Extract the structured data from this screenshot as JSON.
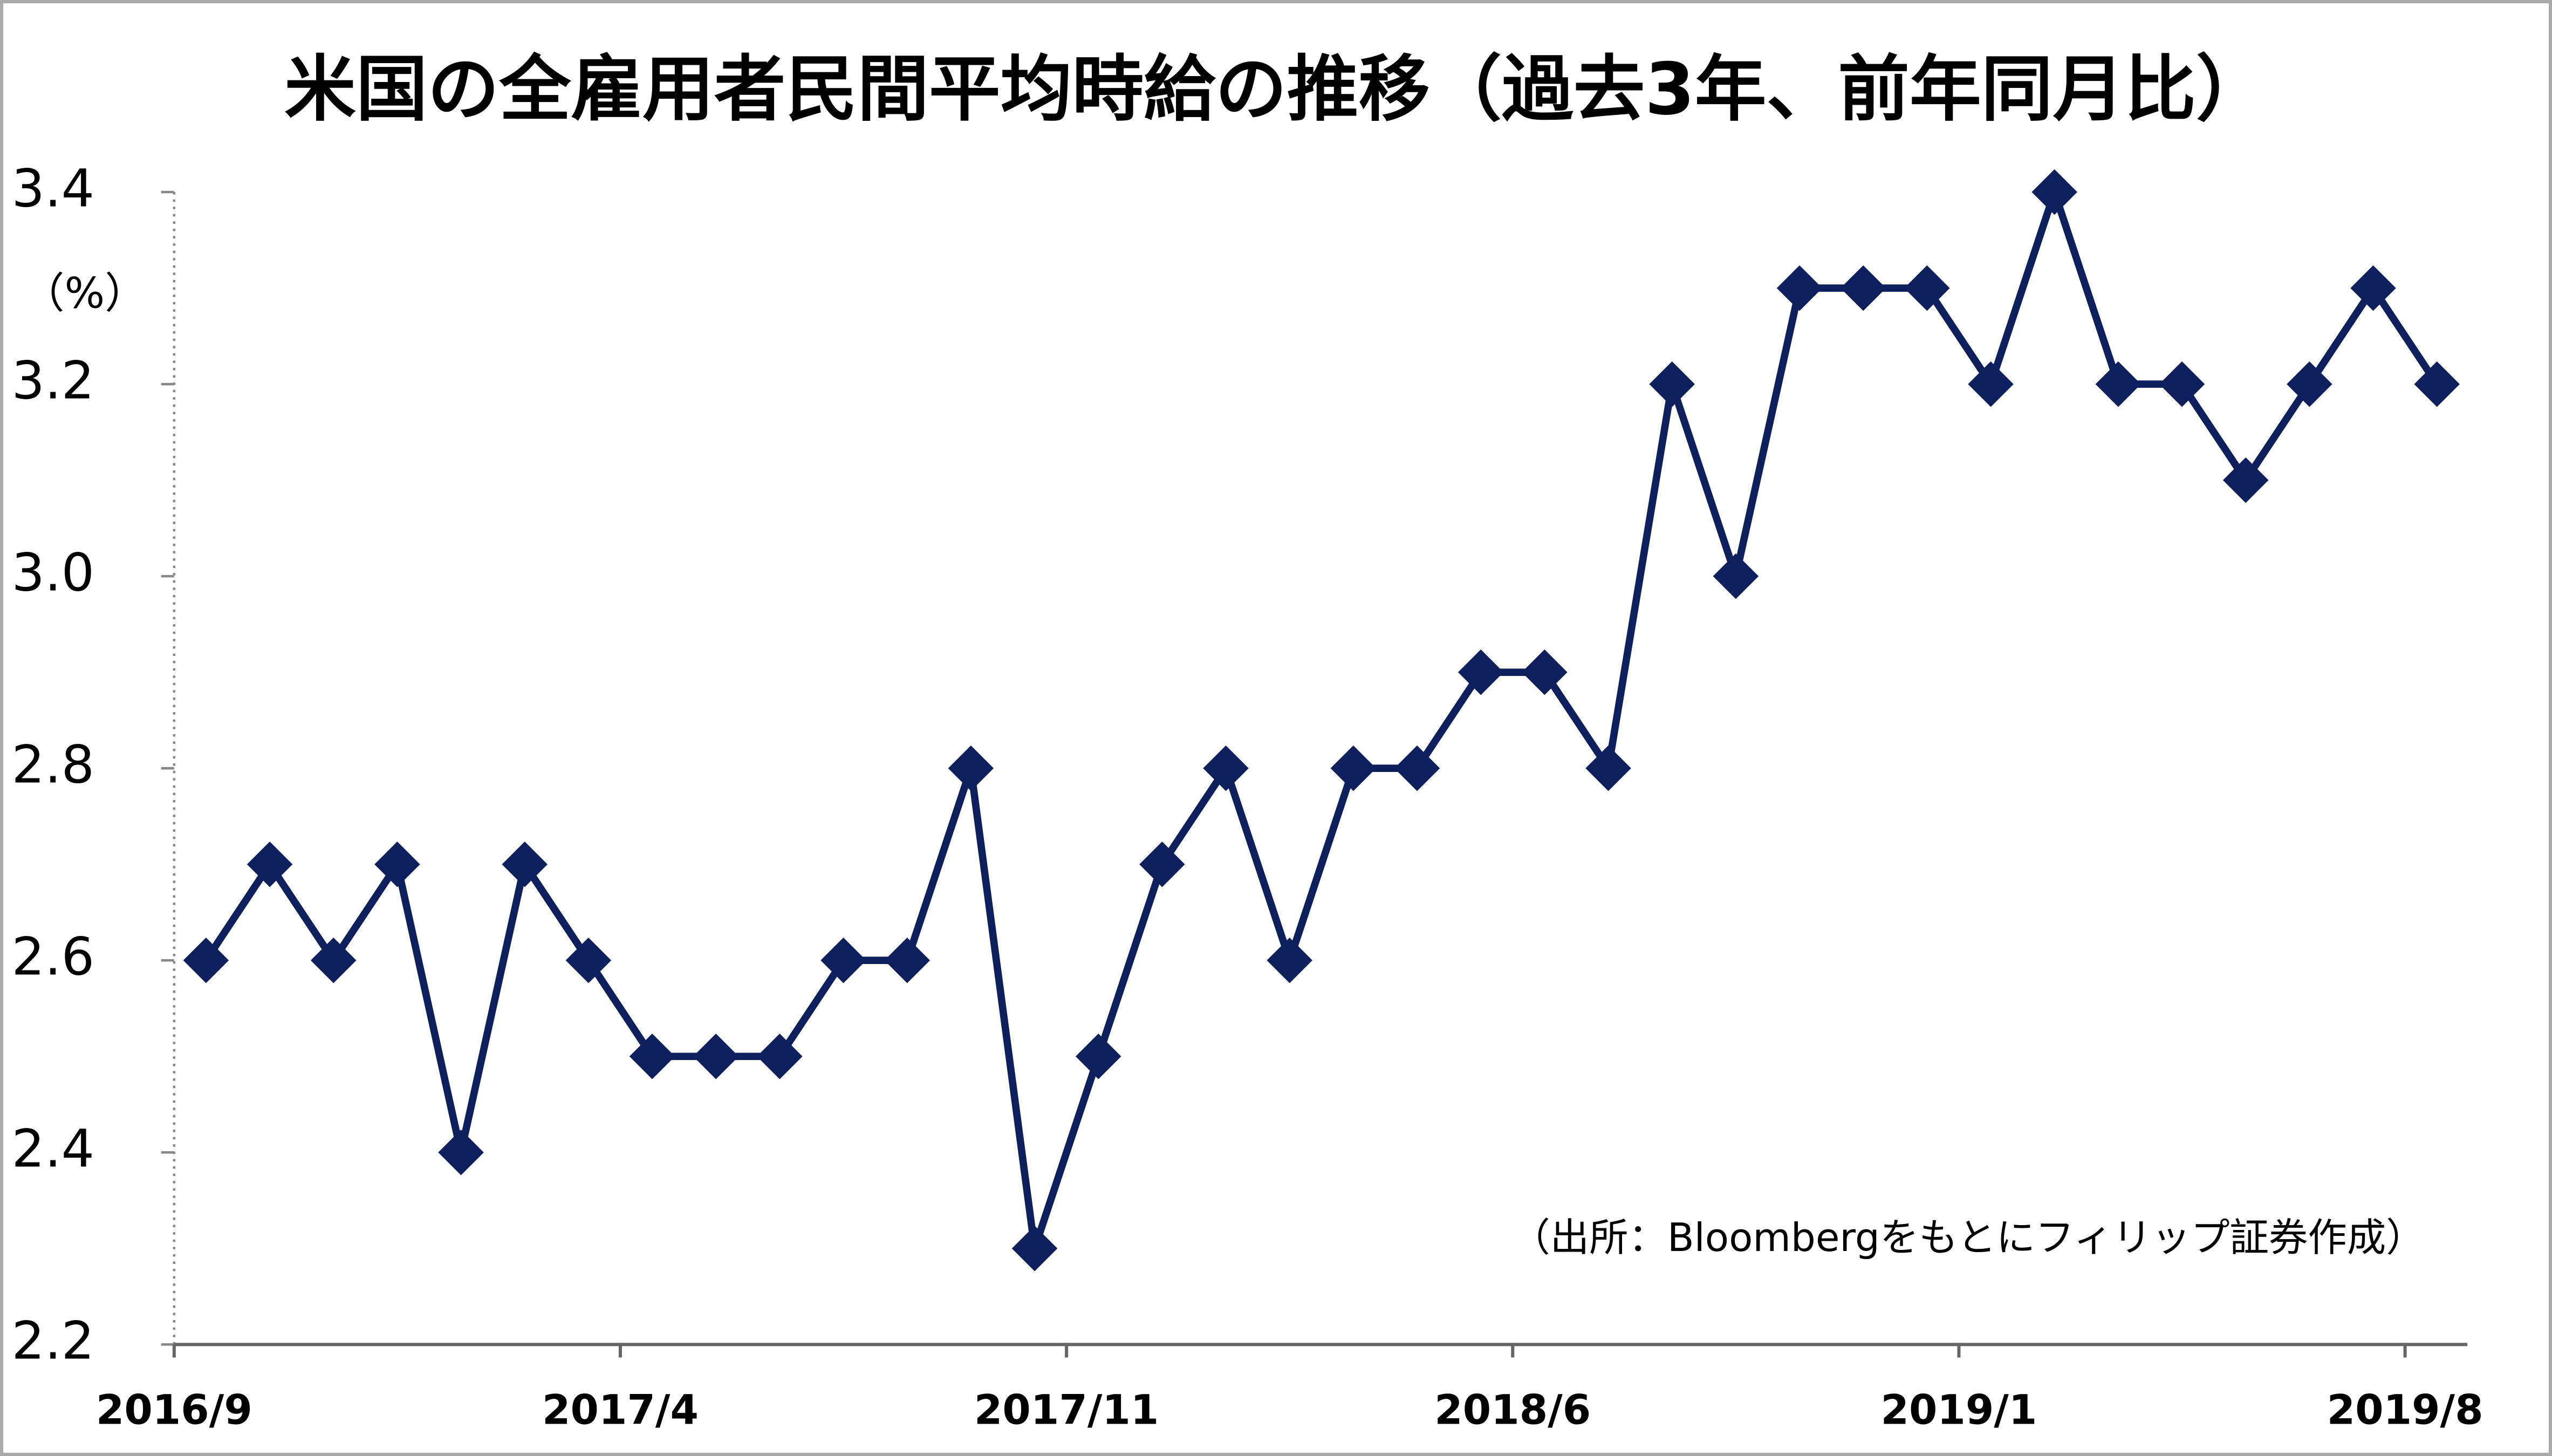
{
  "chart_data": {
    "type": "line",
    "title": "米国の全雇用者民間平均時給の推移（過去3年、前年同月比）",
    "y_unit": "（%）",
    "note": "（出所：Bloombergをもとにフィリップ証券作成）",
    "categories": [
      "2016/9",
      null,
      null,
      null,
      null,
      null,
      null,
      "2017/4",
      null,
      null,
      null,
      null,
      null,
      null,
      "2017/11",
      null,
      null,
      null,
      null,
      null,
      null,
      "2018/6",
      null,
      null,
      null,
      null,
      null,
      null,
      "2019/1",
      null,
      null,
      null,
      null,
      null,
      null,
      "2019/8"
    ],
    "values": [
      2.6,
      2.7,
      2.6,
      2.7,
      2.4,
      2.7,
      2.6,
      2.5,
      2.5,
      2.5,
      2.6,
      2.6,
      2.8,
      2.3,
      2.5,
      2.7,
      2.8,
      2.6,
      2.8,
      2.8,
      2.9,
      2.9,
      2.8,
      3.2,
      3.0,
      3.3,
      3.3,
      3.3,
      3.2,
      3.4,
      3.2,
      3.2,
      3.1,
      3.2,
      3.3,
      3.2
    ],
    "color": "#0d1f5c",
    "marker": "diamond",
    "ylim": [
      2.2,
      3.4
    ],
    "yticks": [
      2.2,
      2.4,
      2.6,
      2.8,
      {
        "value": 3,
        "label": "3.0"
      },
      3.2,
      3.4
    ]
  }
}
